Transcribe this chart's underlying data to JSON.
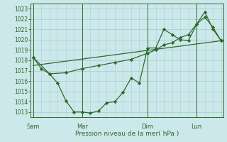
{
  "xlabel": "Pression niveau de la mer( hPa )",
  "ylim": [
    1012.5,
    1023.5
  ],
  "yticks": [
    1013,
    1014,
    1015,
    1016,
    1017,
    1018,
    1019,
    1020,
    1021,
    1022,
    1023
  ],
  "bg_color": "#cce8ea",
  "grid_color": "#aacfd4",
  "line_color": "#2d6a2d",
  "day_labels": [
    "Sam",
    "Mar",
    "Dim",
    "Lun"
  ],
  "day_positions": [
    0,
    6,
    14,
    20
  ],
  "xlim": [
    -0.3,
    23.3
  ],
  "series1_x": [
    0,
    1,
    2,
    3,
    4,
    5,
    6,
    7,
    8,
    9,
    10,
    11,
    12,
    13,
    14,
    15,
    16,
    17,
    18,
    19,
    20,
    21,
    22,
    23
  ],
  "series1_y": [
    1018.3,
    1017.2,
    1016.7,
    1015.8,
    1014.1,
    1013.0,
    1013.0,
    1012.9,
    1013.1,
    1013.9,
    1014.0,
    1014.9,
    1016.3,
    1015.8,
    1019.2,
    1019.2,
    1021.0,
    1020.5,
    1020.0,
    1019.9,
    1021.5,
    1022.7,
    1021.0,
    1019.9
  ],
  "series2_x": [
    0,
    2,
    4,
    6,
    8,
    10,
    12,
    14,
    15,
    16,
    17,
    18,
    19,
    20,
    21,
    22,
    23
  ],
  "series2_y": [
    1018.3,
    1016.7,
    1016.8,
    1017.2,
    1017.5,
    1017.8,
    1018.1,
    1018.7,
    1019.0,
    1019.5,
    1019.7,
    1020.2,
    1020.5,
    1021.5,
    1022.2,
    1021.2,
    1019.9
  ],
  "series3_x": [
    0,
    23
  ],
  "series3_y": [
    1017.5,
    1019.9
  ]
}
